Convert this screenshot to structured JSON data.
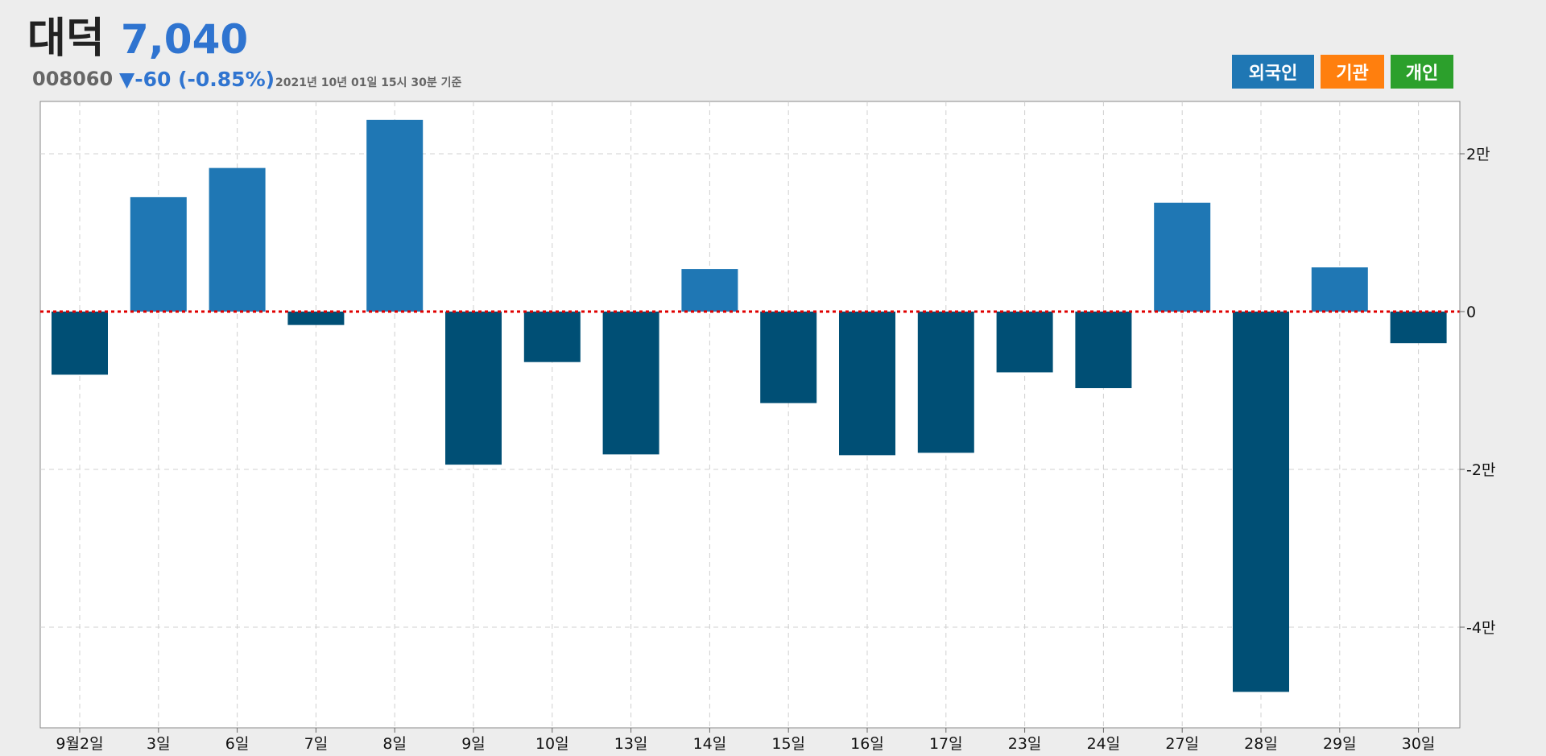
{
  "stock": {
    "name": "대덕",
    "price": "7,040",
    "code": "008060",
    "change": "▼-60 (-0.85%)",
    "as_of": "2021년 10년 01일 15시 30분 기준"
  },
  "legend": {
    "foreign": "외국인",
    "institution": "기관",
    "individual": "개인"
  },
  "colors": {
    "positive": "#1f77b4",
    "negative": "#004f75",
    "zero_line": "#e00000",
    "grid": "#d0d0d0"
  },
  "chart_data": {
    "type": "bar",
    "series": [
      {
        "values": [
          -8000,
          14500,
          18200,
          -1700,
          24300,
          -19400,
          -6400,
          -18100,
          5400,
          -11600,
          -18200,
          -17900,
          -7700,
          -9700,
          13800,
          -48200,
          5600,
          -4000
        ]
      }
    ],
    "categories": [
      "9월2일",
      "3일",
      "6일",
      "7일",
      "8일",
      "9일",
      "10일",
      "13일",
      "14일",
      "15일",
      "16일",
      "17일",
      "23일",
      "24일",
      "27일",
      "28일",
      "29일",
      "30일"
    ],
    "y_ticks": [
      {
        "value": 20000,
        "label": "2만"
      },
      {
        "value": 0,
        "label": "0"
      },
      {
        "value": -20000,
        "label": "-2만"
      },
      {
        "value": -40000,
        "label": "-4만"
      }
    ],
    "ylim": [
      -52000,
      26500
    ],
    "grid": true,
    "zero_line": "dotted-red"
  }
}
